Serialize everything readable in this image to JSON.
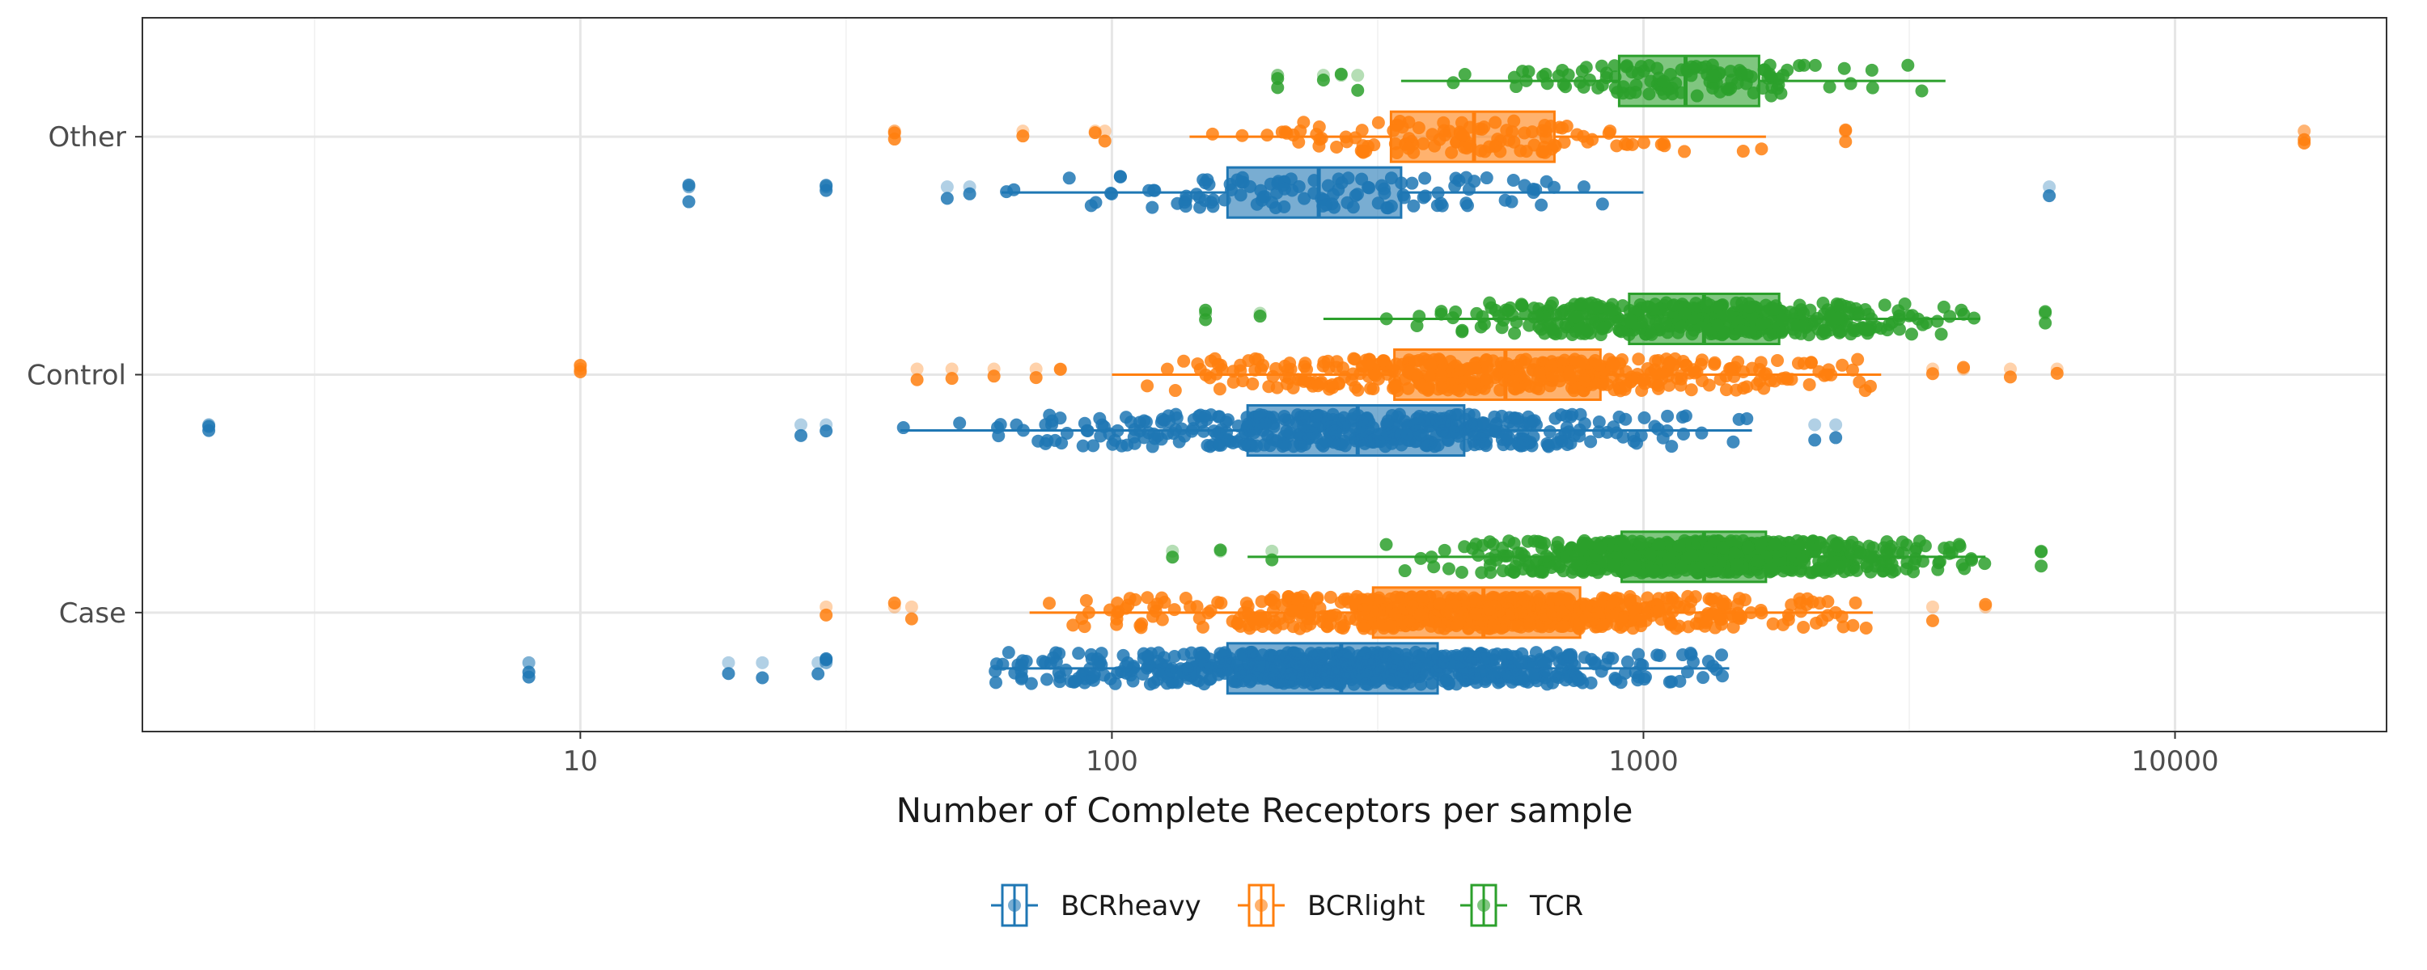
{
  "chart_data": {
    "type": "boxplot-jitter",
    "orientation": "horizontal",
    "x_axis": {
      "label": "Number of Complete Receptors per sample",
      "scale": "log10",
      "range": [
        1.5,
        25000
      ],
      "ticks": [
        10,
        100,
        1000,
        10000
      ],
      "tick_labels": [
        "10",
        "100",
        "1000",
        "10000"
      ]
    },
    "y_axis": {
      "categories": [
        "Case",
        "Control",
        "Other"
      ]
    },
    "grid": true,
    "legend": {
      "position": "bottom",
      "entries": [
        "BCRheavy",
        "BCRlight",
        "TCR"
      ]
    },
    "colors": {
      "BCRheavy": "#1f77b4",
      "BCRlight": "#ff7f0e",
      "TCR": "#2ca02c"
    },
    "series": [
      {
        "name": "BCRheavy",
        "groups": [
          {
            "category": "Case",
            "whisker_low": 60,
            "q1": 165,
            "median": 270,
            "q3": 410,
            "whisker_high": 1450,
            "n_points": 700,
            "outliers": [
              8,
              8,
              19,
              22,
              28,
              29,
              29
            ]
          },
          {
            "category": "Control",
            "whisker_low": 40,
            "q1": 180,
            "median": 290,
            "q3": 460,
            "whisker_high": 1600,
            "n_points": 450,
            "outliers": [
              2,
              2,
              26,
              29,
              2100,
              2300
            ]
          },
          {
            "category": "Other",
            "whisker_low": 62,
            "q1": 165,
            "median": 245,
            "q3": 350,
            "whisker_high": 1000,
            "n_points": 120,
            "outliers": [
              16,
              16,
              29,
              29,
              49,
              54,
              5800
            ]
          }
        ]
      },
      {
        "name": "BCRlight",
        "groups": [
          {
            "category": "Case",
            "whisker_low": 70,
            "q1": 310,
            "median": 500,
            "q3": 760,
            "whisker_high": 2700,
            "n_points": 700,
            "outliers": [
              29,
              39,
              42,
              3500,
              4400
            ]
          },
          {
            "category": "Control",
            "whisker_low": 100,
            "q1": 340,
            "median": 550,
            "q3": 830,
            "whisker_high": 2800,
            "n_points": 450,
            "outliers": [
              10,
              10,
              43,
              50,
              60,
              72,
              80,
              3500,
              4000,
              4900,
              6000
            ]
          },
          {
            "category": "Other",
            "whisker_low": 140,
            "q1": 335,
            "median": 480,
            "q3": 680,
            "whisker_high": 1700,
            "n_points": 120,
            "outliers": [
              39,
              39,
              68,
              93,
              97,
              2400,
              2400,
              17500,
              17500
            ]
          }
        ]
      },
      {
        "name": "TCR",
        "groups": [
          {
            "category": "Case",
            "whisker_low": 180,
            "q1": 910,
            "median": 1300,
            "q3": 1700,
            "whisker_high": 4400,
            "n_points": 700,
            "outliers": [
              130,
              160,
              200,
              5600,
              5600
            ]
          },
          {
            "category": "Control",
            "whisker_low": 250,
            "q1": 940,
            "median": 1300,
            "q3": 1800,
            "whisker_high": 4300,
            "n_points": 450,
            "outliers": [
              150,
              150,
              190,
              5700,
              5700
            ]
          },
          {
            "category": "Other",
            "whisker_low": 350,
            "q1": 900,
            "median": 1200,
            "q3": 1650,
            "whisker_high": 3700,
            "n_points": 120,
            "outliers": [
              205,
              205,
              250,
              270,
              290
            ]
          }
        ]
      }
    ]
  }
}
